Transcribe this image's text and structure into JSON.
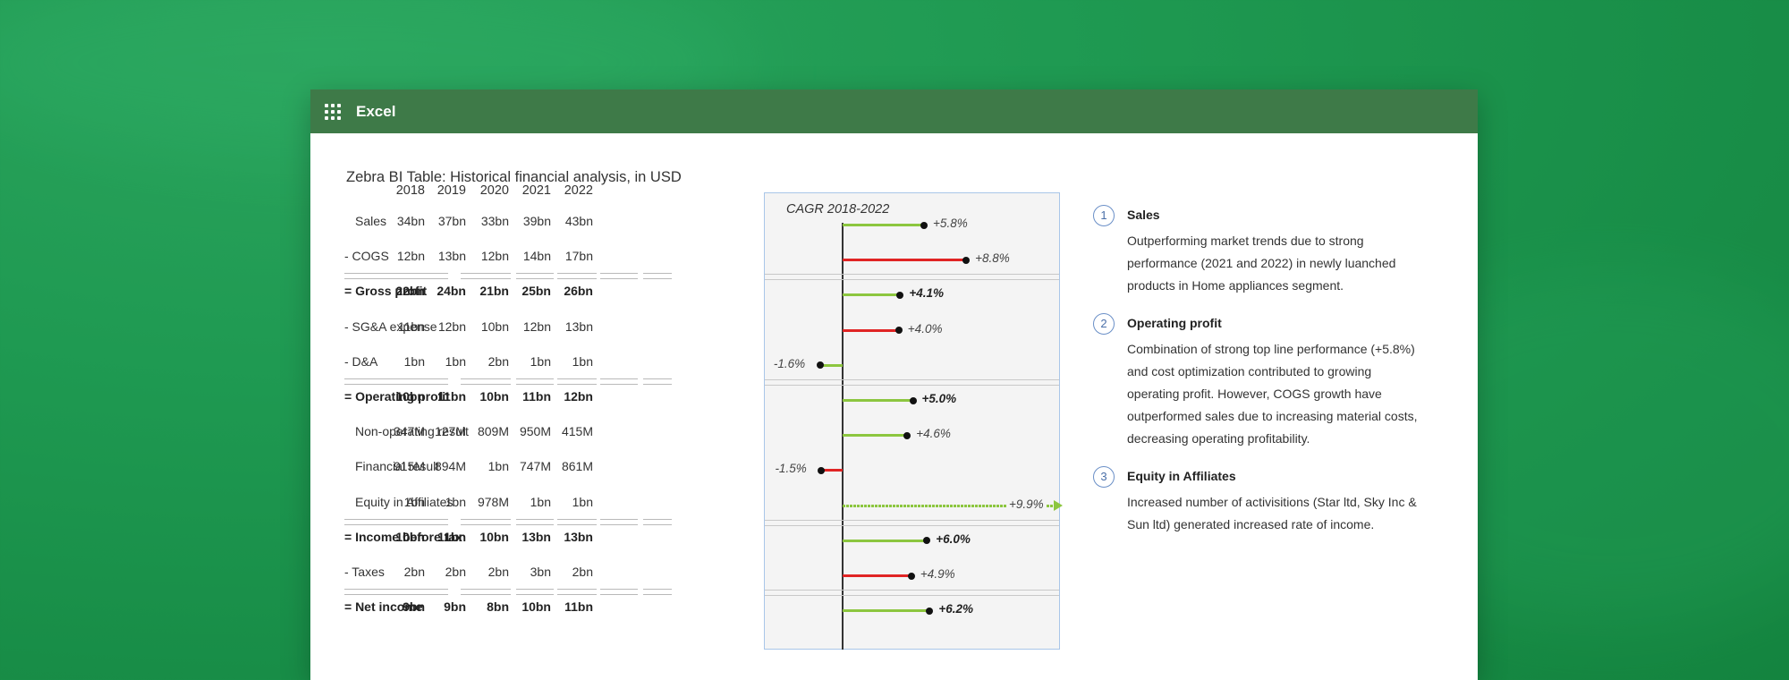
{
  "app": {
    "name": "Excel",
    "menu_icon": "app-launcher-icon",
    "accent": "#3e7a48"
  },
  "table": {
    "title": "Zebra BI Table: Historical financial analysis, in USD",
    "years": [
      "2018",
      "2019",
      "2020",
      "2021",
      "2022"
    ],
    "cagr_header": "CAGR 2018-2022",
    "rows": [
      {
        "label": "Sales",
        "bold": false,
        "values": [
          "34bn",
          "37bn",
          "33bn",
          "39bn",
          "43bn"
        ],
        "cagr": 5.8,
        "cagr_label": "+5.8%",
        "color": "green"
      },
      {
        "label": "- COGS",
        "bold": false,
        "values": [
          "12bn",
          "13bn",
          "12bn",
          "14bn",
          "17bn"
        ],
        "cagr": 8.8,
        "cagr_label": "+8.8%",
        "color": "red"
      },
      {
        "label": "= Gross profit",
        "bold": true,
        "values": [
          "22bn",
          "24bn",
          "21bn",
          "25bn",
          "26bn"
        ],
        "cagr": 4.1,
        "cagr_label": "+4.1%",
        "color": "green"
      },
      {
        "label": "- SG&A expense",
        "bold": false,
        "values": [
          "11bn",
          "12bn",
          "10bn",
          "12bn",
          "13bn"
        ],
        "cagr": 4.0,
        "cagr_label": "+4.0%",
        "color": "red"
      },
      {
        "label": "- D&A",
        "bold": false,
        "values": [
          "1bn",
          "1bn",
          "2bn",
          "1bn",
          "1bn"
        ],
        "cagr": -1.6,
        "cagr_label": "-1.6%",
        "color": "green"
      },
      {
        "label": "= Operating profit",
        "bold": true,
        "values": [
          "10bn",
          "11bn",
          "10bn",
          "11bn",
          "12bn"
        ],
        "cagr": 5.0,
        "cagr_label": "+5.0%",
        "color": "green"
      },
      {
        "label": "Non-operating result",
        "bold": false,
        "values": [
          "347M",
          "127M",
          "809M",
          "950M",
          "415M"
        ],
        "cagr": 4.6,
        "cagr_label": "+4.6%",
        "color": "green"
      },
      {
        "label": "Financial result",
        "bold": false,
        "values": [
          "915M",
          "894M",
          "1bn",
          "747M",
          "861M"
        ],
        "cagr": -1.5,
        "cagr_label": "-1.5%",
        "color": "red"
      },
      {
        "label": "Equity in Affiliates",
        "bold": false,
        "values": [
          "1bn",
          "1bn",
          "978M",
          "1bn",
          "1bn"
        ],
        "cagr": 9.9,
        "cagr_label": "+9.9%",
        "color": "green",
        "outlier": true
      },
      {
        "label": "= Income before tax",
        "bold": true,
        "values": [
          "10bn",
          "11bn",
          "10bn",
          "13bn",
          "13bn"
        ],
        "cagr": 6.0,
        "cagr_label": "+6.0%",
        "color": "green"
      },
      {
        "label": "- Taxes",
        "bold": false,
        "values": [
          "2bn",
          "2bn",
          "2bn",
          "3bn",
          "2bn"
        ],
        "cagr": 4.9,
        "cagr_label": "+4.9%",
        "color": "red"
      },
      {
        "label": "= Net income",
        "bold": true,
        "values": [
          "9bn",
          "9bn",
          "8bn",
          "10bn",
          "11bn"
        ],
        "cagr": 6.2,
        "cagr_label": "+6.2%",
        "color": "green"
      }
    ],
    "colors": {
      "positive": "#8cc63f",
      "negative": "#e02424"
    }
  },
  "notes": [
    {
      "num": "1",
      "title": "Sales",
      "lines": [
        "Outperforming market trends due to strong",
        "performance (2021 and 2022) in newly luanched",
        "products in Home appliances segment."
      ]
    },
    {
      "num": "2",
      "title": "Operating profit",
      "lines": [
        "Combination of strong top line performance (+5.8%)",
        "and cost optimization contributed to growing",
        "operating profit. However, COGS growth have",
        "outperformed sales due to increasing material costs,",
        "decreasing operating profitability."
      ]
    },
    {
      "num": "3",
      "title": "Equity in Affiliates",
      "lines": [
        "Increased number of activisitions (Star ltd, Sky Inc &",
        "Sun ltd) generated increased rate of income."
      ]
    }
  ]
}
